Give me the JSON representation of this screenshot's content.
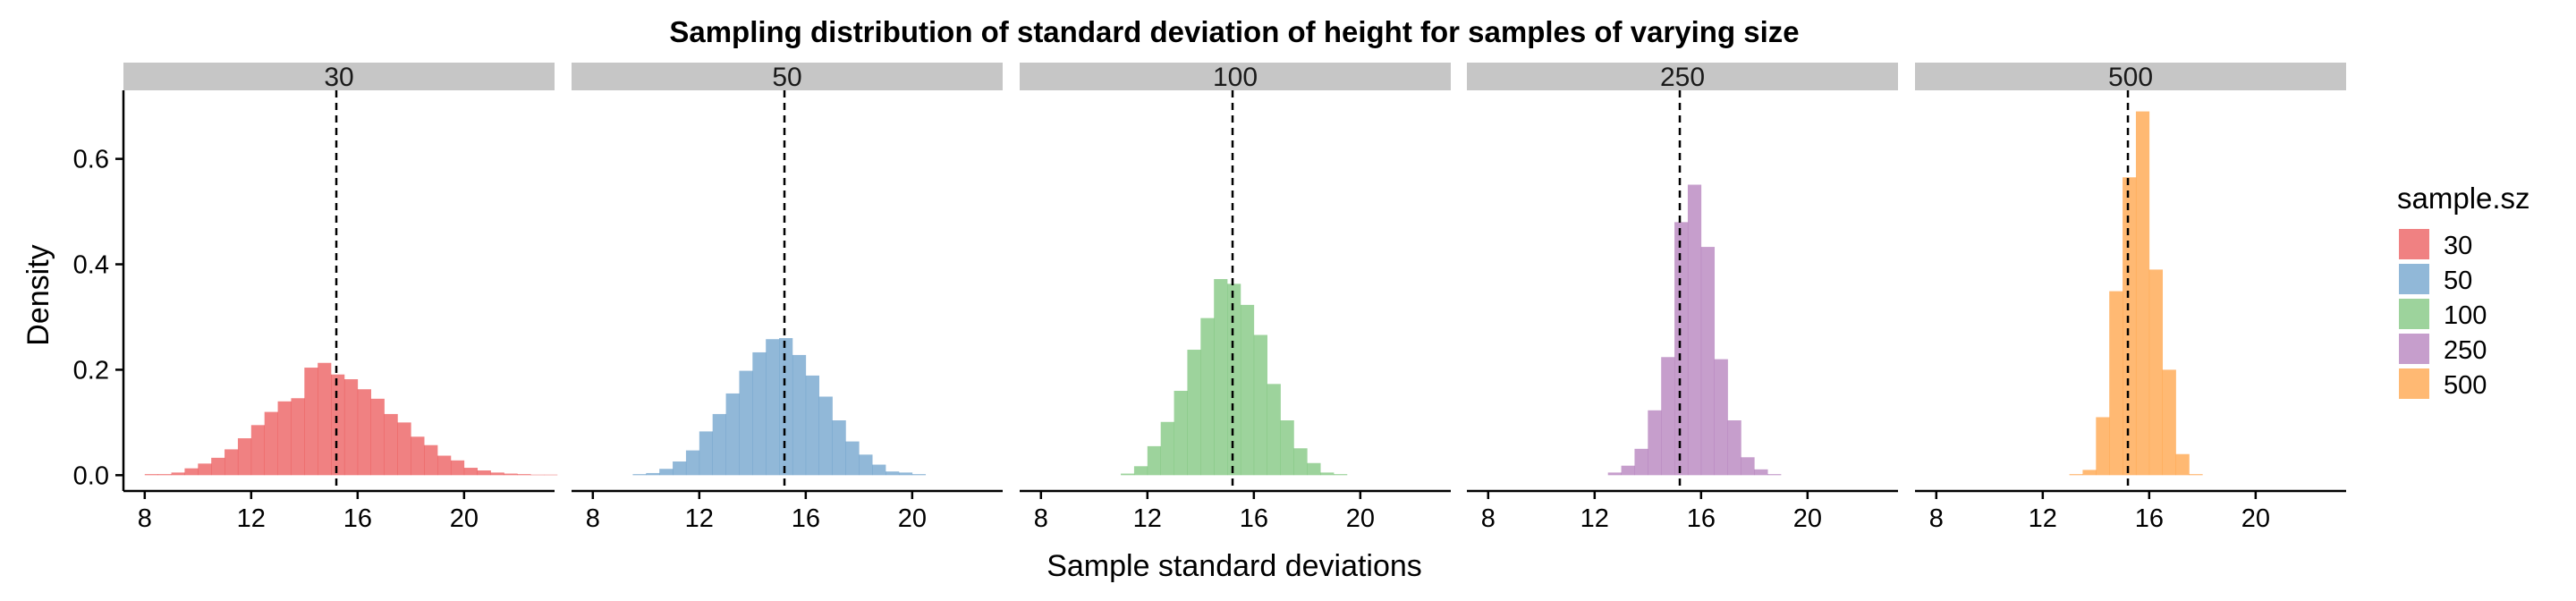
{
  "chart_data": {
    "type": "bar",
    "title": "Sampling distribution of standard deviation of height for samples of varying size",
    "xlabel": "Sample standard deviations",
    "ylabel": "Density",
    "xlim": [
      7.2,
      23.4
    ],
    "ylim": [
      -0.03,
      0.73
    ],
    "xticks": [
      8,
      12,
      16,
      20
    ],
    "yticks": [
      0.0,
      0.2,
      0.4,
      0.6
    ],
    "ytick_labels": [
      "0.0",
      "0.2",
      "0.4",
      "0.6"
    ],
    "reference_line": 15.2,
    "bin_width": 0.5,
    "grid": false,
    "legend": {
      "title": "sample.sz",
      "position": "right",
      "entries": [
        "30",
        "50",
        "100",
        "250",
        "500"
      ]
    },
    "series": [
      {
        "name": "30",
        "color": "#E41A1C",
        "bin_start": 8.0,
        "values": [
          0.002,
          0.002,
          0.005,
          0.013,
          0.022,
          0.033,
          0.049,
          0.07,
          0.095,
          0.12,
          0.14,
          0.146,
          0.204,
          0.213,
          0.191,
          0.182,
          0.163,
          0.145,
          0.116,
          0.1,
          0.073,
          0.057,
          0.037,
          0.028,
          0.014,
          0.009,
          0.005,
          0.003,
          0.002,
          0.001,
          0.001
        ]
      },
      {
        "name": "50",
        "color": "#377EB8",
        "bin_start": 9.5,
        "values": [
          0.002,
          0.004,
          0.012,
          0.026,
          0.047,
          0.083,
          0.116,
          0.155,
          0.198,
          0.233,
          0.258,
          0.26,
          0.228,
          0.189,
          0.149,
          0.104,
          0.064,
          0.039,
          0.02,
          0.007,
          0.005,
          0.002
        ]
      },
      {
        "name": "100",
        "color": "#4DAF4A",
        "bin_start": 11.0,
        "values": [
          0.003,
          0.017,
          0.055,
          0.101,
          0.16,
          0.238,
          0.298,
          0.372,
          0.363,
          0.323,
          0.266,
          0.173,
          0.104,
          0.051,
          0.023,
          0.005,
          0.002
        ]
      },
      {
        "name": "250",
        "color": "#984EA3",
        "bin_start": 12.5,
        "values": [
          0.005,
          0.018,
          0.05,
          0.123,
          0.224,
          0.48,
          0.551,
          0.433,
          0.22,
          0.104,
          0.034,
          0.011,
          0.002
        ]
      },
      {
        "name": "500",
        "color": "#FF7F00",
        "bin_start": 13.0,
        "values": [
          0.002,
          0.01,
          0.11,
          0.349,
          0.565,
          0.69,
          0.39,
          0.2,
          0.04,
          0.002
        ]
      }
    ]
  }
}
